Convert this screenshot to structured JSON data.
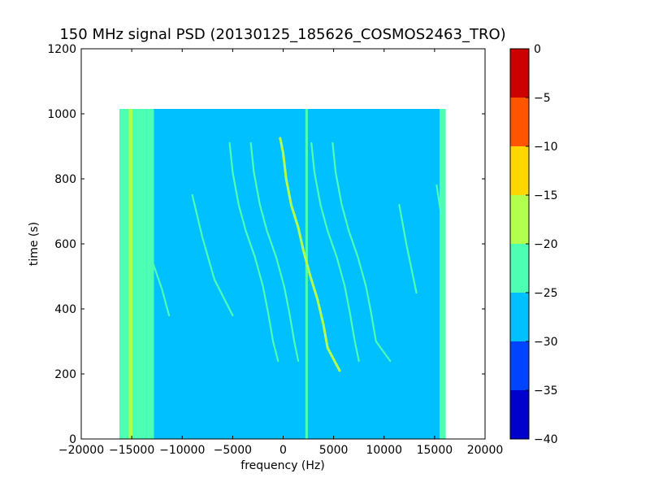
{
  "chart_data": {
    "type": "heatmap",
    "title": "150 MHz signal PSD (20130125_185626_COSMOS2463_TRO)",
    "xlabel": "frequency (Hz)",
    "ylabel": "time (s)",
    "xlim": [
      -20000,
      20000
    ],
    "ylim": [
      0,
      1200
    ],
    "x_ticks": [
      -20000,
      -15000,
      -10000,
      -5000,
      0,
      5000,
      10000,
      15000,
      20000
    ],
    "x_tick_labels": [
      "−20000",
      "−15000",
      "−10000",
      "−5000",
      "0",
      "5000",
      "10000",
      "15000",
      "20000"
    ],
    "y_ticks": [
      0,
      200,
      400,
      600,
      800,
      1000,
      1200
    ],
    "y_tick_labels": [
      "0",
      "200",
      "400",
      "600",
      "800",
      "1000",
      "1200"
    ],
    "data_extent": {
      "x": [
        -16200,
        16100
      ],
      "y": [
        0,
        1015
      ]
    },
    "background_level": -27.5,
    "colorbar": {
      "range": [
        -40,
        0
      ],
      "ticks": [
        0,
        -5,
        -10,
        -15,
        -20,
        -25,
        -30,
        -35,
        -40
      ],
      "tick_labels": [
        "0",
        "−5",
        "−10",
        "−15",
        "−20",
        "−25",
        "−30",
        "−35",
        "−40"
      ],
      "levels": [
        {
          "from": -40,
          "to": -35,
          "color": "#0000cd"
        },
        {
          "from": -35,
          "to": -30,
          "color": "#0044ff"
        },
        {
          "from": -30,
          "to": -25,
          "color": "#00c0ff"
        },
        {
          "from": -25,
          "to": -20,
          "color": "#4dffb2"
        },
        {
          "from": -20,
          "to": -15,
          "color": "#b2ff4d"
        },
        {
          "from": -15,
          "to": -10,
          "color": "#ffd700"
        },
        {
          "from": -10,
          "to": -5,
          "color": "#ff5500"
        },
        {
          "from": -5,
          "to": 0,
          "color": "#cd0000"
        }
      ]
    },
    "vertical_bands": [
      {
        "x_from": -16200,
        "x_to": -15200,
        "level": -22.5
      },
      {
        "x_from": -15300,
        "x_to": -14900,
        "level": -17.5
      },
      {
        "x_from": -14900,
        "x_to": -13500,
        "level": -22.5
      },
      {
        "x_from": -13500,
        "x_to": -12800,
        "level": -22.5
      },
      {
        "x_from": 2200,
        "x_to": 2450,
        "level": -22.5
      },
      {
        "x_from": 15500,
        "x_to": 16100,
        "level": -22.5
      }
    ],
    "series": [
      {
        "level": -22.5,
        "points": [
          [
            -5300,
            910
          ],
          [
            -5000,
            820
          ],
          [
            -4400,
            720
          ],
          [
            -3700,
            640
          ],
          [
            -2800,
            560
          ],
          [
            -2000,
            470
          ],
          [
            -1500,
            390
          ],
          [
            -1000,
            300
          ],
          [
            -500,
            240
          ]
        ]
      },
      {
        "level": -22.5,
        "points": [
          [
            -3200,
            910
          ],
          [
            -2900,
            820
          ],
          [
            -2300,
            720
          ],
          [
            -1600,
            640
          ],
          [
            -700,
            560
          ],
          [
            100,
            470
          ],
          [
            600,
            390
          ],
          [
            1100,
            300
          ],
          [
            1500,
            240
          ]
        ]
      },
      {
        "level": -17.5,
        "points": [
          [
            -300,
            925
          ],
          [
            0,
            880
          ],
          [
            300,
            800
          ],
          [
            800,
            720
          ],
          [
            1500,
            650
          ],
          [
            2000,
            580
          ],
          [
            2700,
            500
          ],
          [
            3400,
            430
          ],
          [
            4000,
            350
          ],
          [
            4400,
            280
          ],
          [
            5600,
            210
          ]
        ]
      },
      {
        "level": -22.5,
        "points": [
          [
            2800,
            910
          ],
          [
            3100,
            820
          ],
          [
            3700,
            720
          ],
          [
            4400,
            640
          ],
          [
            5300,
            560
          ],
          [
            6100,
            470
          ],
          [
            6600,
            390
          ],
          [
            7100,
            300
          ],
          [
            7500,
            240
          ]
        ]
      },
      {
        "level": -22.5,
        "points": [
          [
            4900,
            910
          ],
          [
            5200,
            820
          ],
          [
            5800,
            720
          ],
          [
            6500,
            640
          ],
          [
            7400,
            560
          ],
          [
            8200,
            470
          ],
          [
            8700,
            390
          ],
          [
            9200,
            300
          ],
          [
            10600,
            240
          ]
        ]
      },
      {
        "level": -25,
        "points": [
          [
            -13000,
            550
          ],
          [
            -12000,
            460
          ],
          [
            -11300,
            380
          ]
        ]
      },
      {
        "level": -25,
        "points": [
          [
            -9000,
            750
          ],
          [
            -8000,
            620
          ],
          [
            -6800,
            490
          ],
          [
            -5000,
            380
          ]
        ]
      },
      {
        "level": -25,
        "points": [
          [
            11500,
            720
          ],
          [
            12200,
            600
          ],
          [
            13200,
            450
          ]
        ]
      },
      {
        "level": -25,
        "points": [
          [
            15200,
            780
          ],
          [
            15600,
            700
          ],
          [
            16000,
            650
          ]
        ]
      }
    ]
  }
}
